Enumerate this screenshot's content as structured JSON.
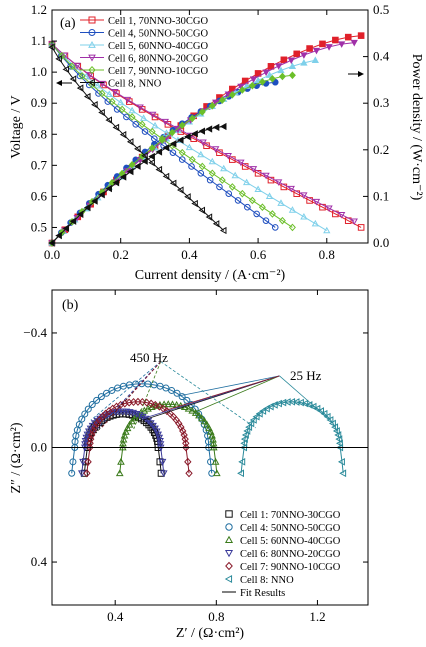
{
  "chart_data": [
    {
      "panel": "(a)",
      "type": "line",
      "xlabel": "Current density / (A·cm⁻²)",
      "ylabel": "Voltage / V",
      "y2label": "Power density / (W·cm⁻²)",
      "xlim": [
        0,
        0.92
      ],
      "ylim": [
        0.45,
        1.2
      ],
      "y2lim": [
        0,
        0.5
      ],
      "xticks": [
        "0.0",
        "0.2",
        "0.4",
        "0.6",
        "0.8"
      ],
      "yticks": [
        "0.5",
        "0.6",
        "0.7",
        "0.8",
        "0.9",
        "1.0",
        "1.1",
        "1.2"
      ],
      "y2ticks": [
        "0.0",
        "0.1",
        "0.2",
        "0.3",
        "0.4",
        "0.5"
      ],
      "legend": "top-left",
      "series": [
        {
          "name": "Cell 1, 70NNO-30CGO",
          "color": "#e0202a",
          "marker": "square",
          "jmax": 0.9,
          "voc": 1.09,
          "vend": 0.5,
          "pmax": 0.445
        },
        {
          "name": "Cell 4, 50NNO-50CGO",
          "color": "#1f4fbf",
          "marker": "circle",
          "jmax": 0.65,
          "voc": 1.09,
          "vend": 0.5,
          "pmax": 0.345
        },
        {
          "name": "Cell 5, 60NNO-40CGO",
          "color": "#7fd0ea",
          "marker": "triangle-up",
          "jmax": 0.8,
          "voc": 1.09,
          "vend": 0.49,
          "pmax": 0.395
        },
        {
          "name": "Cell 6, 80NNO-20CGO",
          "color": "#a030a8",
          "marker": "triangle-down",
          "jmax": 0.88,
          "voc": 1.09,
          "vend": 0.52,
          "pmax": 0.43
        },
        {
          "name": "Cell 7, 90NNO-10CGO",
          "color": "#6cbf2a",
          "marker": "diamond",
          "jmax": 0.7,
          "voc": 1.09,
          "vend": 0.5,
          "pmax": 0.36
        },
        {
          "name": "Cell 8, NNO",
          "color": "#111111",
          "marker": "triangle-left",
          "jmax": 0.5,
          "voc": 1.08,
          "vend": 0.49,
          "pmax": 0.25
        }
      ]
    },
    {
      "panel": "(b)",
      "type": "scatter",
      "xlabel": "Z′ / (Ω·cm²)",
      "ylabel": "Z″ / (Ω·cm²)",
      "xlim": [
        0.15,
        1.4
      ],
      "ylim": [
        0.55,
        -0.55
      ],
      "xticks": [
        "0.4",
        "0.8",
        "1.2"
      ],
      "yticks": [
        "−0.4",
        "0.0",
        "0.4"
      ],
      "annotations": [
        "450 Hz",
        "25 Hz"
      ],
      "legend": "bottom-right",
      "series": [
        {
          "name": "Cell 1: 70NNO-30CGO",
          "color": "#111111",
          "marker": "square",
          "rs": 0.29,
          "rp": 0.28
        },
        {
          "name": "Cell 4: 50NNO-50CGO",
          "color": "#1f6ea0",
          "marker": "circle",
          "rs": 0.24,
          "rp": 0.53
        },
        {
          "name": "Cell 5: 60NNO-40CGO",
          "color": "#3a7a1a",
          "marker": "triangle-up",
          "rs": 0.43,
          "rp": 0.36
        },
        {
          "name": "Cell 6: 80NNO-20CGO",
          "color": "#3a3a9a",
          "marker": "triangle-down",
          "rs": 0.28,
          "rp": 0.3
        },
        {
          "name": "Cell 7: 90NNO-10CGO",
          "color": "#8a1a2a",
          "marker": "diamond",
          "rs": 0.3,
          "rp": 0.38
        },
        {
          "name": "Cell 8: NNO",
          "color": "#2a8a9a",
          "marker": "triangle-left",
          "rs": 0.91,
          "rp": 0.38
        }
      ],
      "fit_label": "Fit Results"
    }
  ]
}
